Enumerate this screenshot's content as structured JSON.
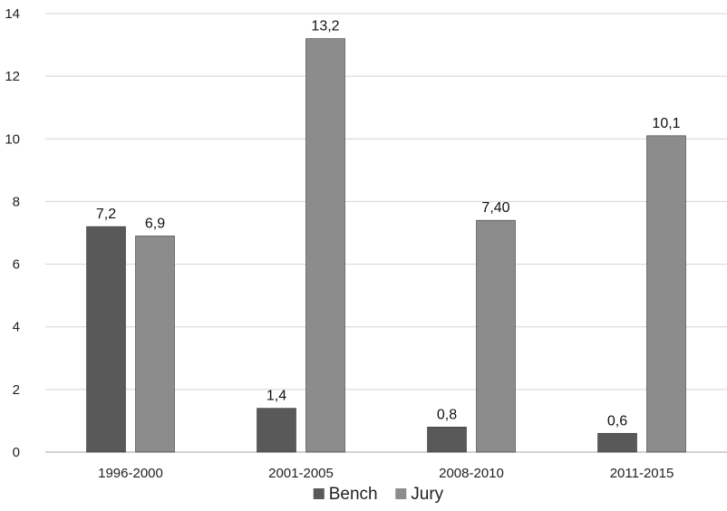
{
  "chart_data": {
    "type": "bar",
    "categories": [
      "1996-2000",
      "2001-2005",
      "2008-2010",
      "2011-2015"
    ],
    "series": [
      {
        "name": "Bench",
        "values": [
          7.2,
          1.4,
          0.8,
          0.6
        ],
        "labels": [
          "7,2",
          "1,4",
          "0,8",
          "0,6"
        ],
        "color": "#595959"
      },
      {
        "name": "Jury",
        "values": [
          6.9,
          13.2,
          7.4,
          10.1
        ],
        "labels": [
          "6,9",
          "13,2",
          "7,40",
          "10,1"
        ],
        "color": "#8c8c8c"
      }
    ],
    "y_ticks": [
      0,
      2,
      4,
      6,
      8,
      10,
      12,
      14
    ],
    "ylim": [
      0,
      14
    ],
    "grid": true,
    "legend_position": "bottom"
  }
}
